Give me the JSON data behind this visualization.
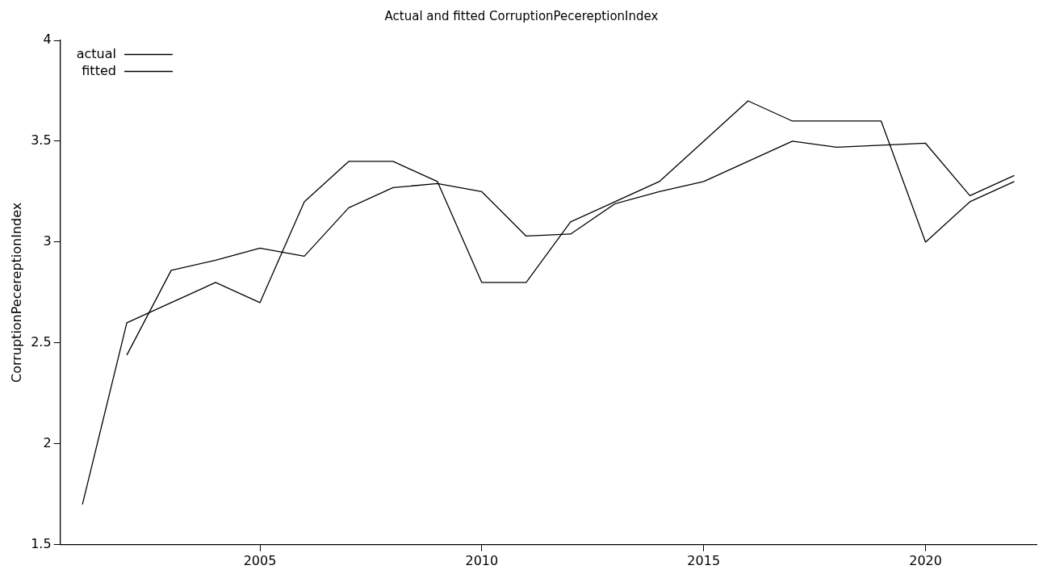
{
  "chart_data": {
    "type": "line",
    "title": "Actual and fitted CorruptionPecereptionIndex",
    "ylabel": "CorruptionPecereptionIndex",
    "xlim": [
      2000.5,
      2022.5
    ],
    "xticks": [
      2005,
      2010,
      2015,
      2020
    ],
    "ylim": [
      1.5,
      4
    ],
    "yticks": [
      1.5,
      2,
      2.5,
      3,
      3.5,
      4
    ],
    "legend": "top left",
    "marker": "none",
    "line_style": "solid",
    "grid": false,
    "series": [
      {
        "name": "actual",
        "color": "#000000",
        "x": [
          2001,
          2002,
          2003,
          2004,
          2005,
          2006,
          2007,
          2008,
          2009,
          2010,
          2011,
          2012,
          2013,
          2014,
          2015,
          2016,
          2017,
          2018,
          2019,
          2020,
          2021,
          2022
        ],
        "values": [
          1.7,
          2.6,
          2.7,
          2.8,
          2.7,
          3.2,
          3.4,
          3.4,
          3.3,
          2.8,
          2.8,
          3.1,
          3.2,
          3.3,
          3.5,
          3.7,
          3.6,
          3.6,
          3.6,
          3.0,
          3.2,
          3.3
        ]
      },
      {
        "name": "fitted",
        "color": "#000000",
        "x": [
          2002,
          2003,
          2004,
          2005,
          2006,
          2007,
          2008,
          2009,
          2010,
          2011,
          2012,
          2013,
          2014,
          2015,
          2016,
          2017,
          2018,
          2019,
          2020,
          2021,
          2022
        ],
        "values": [
          2.44,
          2.86,
          2.91,
          2.97,
          2.93,
          3.17,
          3.27,
          3.29,
          3.25,
          3.03,
          3.04,
          3.19,
          3.25,
          3.3,
          3.4,
          3.5,
          3.47,
          3.48,
          3.49,
          3.23,
          3.33
        ]
      }
    ]
  }
}
